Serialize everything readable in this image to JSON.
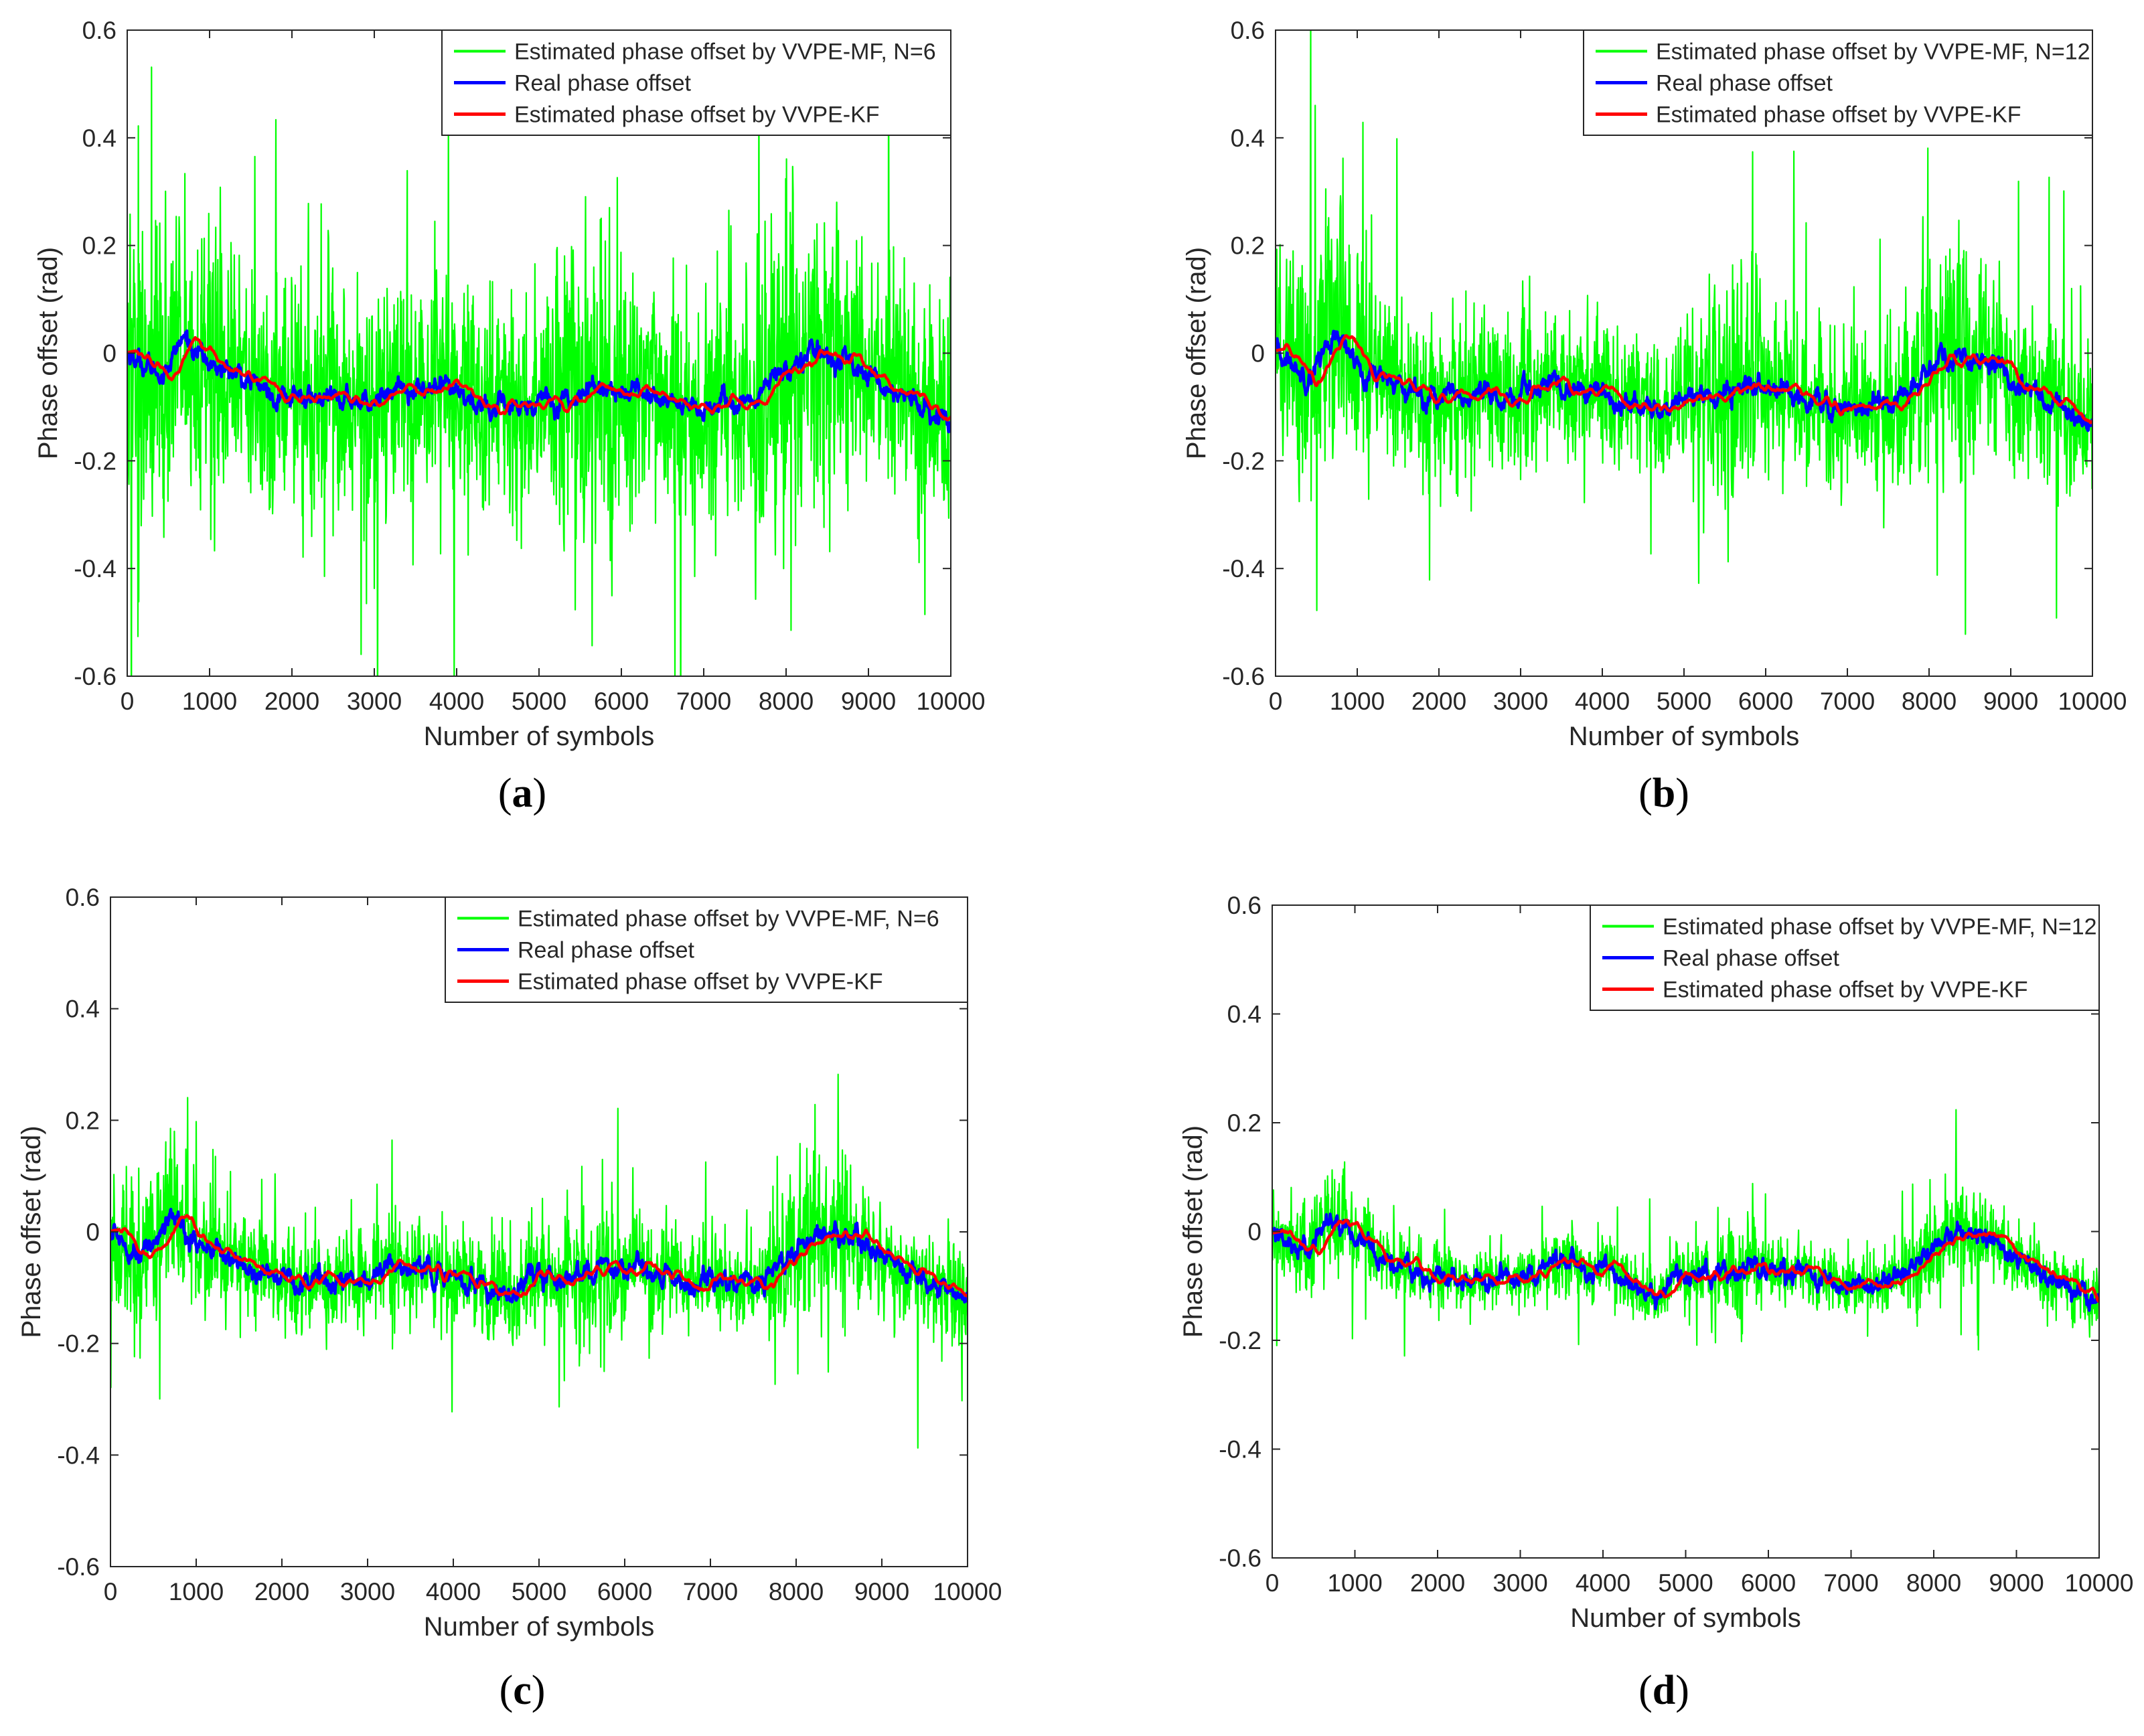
{
  "figure": {
    "panels": [
      "a",
      "b",
      "c",
      "d"
    ]
  },
  "chart_data": [
    {
      "panel": "a",
      "type": "line",
      "caption_letter": "a",
      "xlabel": "Number of symbols",
      "ylabel": "Phase offset (rad)",
      "xlim": [
        0,
        10000
      ],
      "ylim": [
        -0.6,
        0.6
      ],
      "xticks": [
        0,
        1000,
        2000,
        3000,
        4000,
        5000,
        6000,
        7000,
        8000,
        9000,
        10000
      ],
      "yticks": [
        -0.6,
        -0.4,
        -0.2,
        0,
        0.2,
        0.4,
        0.6
      ],
      "xtick_labels": [
        "0",
        "1000",
        "2000",
        "3000",
        "4000",
        "5000",
        "6000",
        "7000",
        "8000",
        "9000",
        "10000"
      ],
      "ytick_labels": [
        "-0.6",
        "-0.4",
        "-0.2",
        "0",
        "0.2",
        "0.4",
        "0.6"
      ],
      "legend_position": "top-right",
      "noise_amplitude": 0.3,
      "series": [
        {
          "name": "Estimated phase offset by VVPE-MF, N=6",
          "color": "#00ff00",
          "role": "noisy"
        },
        {
          "name": "Real phase offset",
          "color": "#0000ff",
          "role": "real"
        },
        {
          "name": "Estimated phase offset by VVPE-KF",
          "color": "#ff0000",
          "role": "kf"
        }
      ]
    },
    {
      "panel": "b",
      "type": "line",
      "caption_letter": "b",
      "xlabel": "Number of symbols",
      "ylabel": "Phase offset (rad)",
      "xlim": [
        0,
        10000
      ],
      "ylim": [
        -0.6,
        0.6
      ],
      "xticks": [
        0,
        1000,
        2000,
        3000,
        4000,
        5000,
        6000,
        7000,
        8000,
        9000,
        10000
      ],
      "yticks": [
        -0.6,
        -0.4,
        -0.2,
        0,
        0.2,
        0.4,
        0.6
      ],
      "xtick_labels": [
        "0",
        "1000",
        "2000",
        "3000",
        "4000",
        "5000",
        "6000",
        "7000",
        "8000",
        "9000",
        "10000"
      ],
      "ytick_labels": [
        "-0.6",
        "-0.4",
        "-0.2",
        "0",
        "0.2",
        "0.4",
        "0.6"
      ],
      "legend_position": "top-right",
      "noise_amplitude": 0.21,
      "series": [
        {
          "name": "Estimated phase offset by VVPE-MF, N=12",
          "color": "#00ff00",
          "role": "noisy"
        },
        {
          "name": "Real phase offset",
          "color": "#0000ff",
          "role": "real"
        },
        {
          "name": "Estimated phase offset by VVPE-KF",
          "color": "#ff0000",
          "role": "kf"
        }
      ]
    },
    {
      "panel": "c",
      "type": "line",
      "caption_letter": "c",
      "xlabel": "Number of symbols",
      "ylabel": "Phase offset (rad)",
      "xlim": [
        0,
        10000
      ],
      "ylim": [
        -0.6,
        0.6
      ],
      "xticks": [
        0,
        1000,
        2000,
        3000,
        4000,
        5000,
        6000,
        7000,
        8000,
        9000,
        10000
      ],
      "yticks": [
        -0.6,
        -0.4,
        -0.2,
        0,
        0.2,
        0.4,
        0.6
      ],
      "xtick_labels": [
        "0",
        "1000",
        "2000",
        "3000",
        "4000",
        "5000",
        "6000",
        "7000",
        "8000",
        "9000",
        "10000"
      ],
      "ytick_labels": [
        "-0.6",
        "-0.4",
        "-0.2",
        "0",
        "0.2",
        "0.4",
        "0.6"
      ],
      "legend_position": "top-right",
      "noise_amplitude": 0.13,
      "series": [
        {
          "name": "Estimated phase offset by VVPE-MF, N=6",
          "color": "#00ff00",
          "role": "noisy"
        },
        {
          "name": "Real phase offset",
          "color": "#0000ff",
          "role": "real"
        },
        {
          "name": "Estimated phase offset by VVPE-KF",
          "color": "#ff0000",
          "role": "kf"
        }
      ]
    },
    {
      "panel": "d",
      "type": "line",
      "caption_letter": "d",
      "xlabel": "Number of symbols",
      "ylabel": "Phase offset (rad)",
      "xlim": [
        0,
        10000
      ],
      "ylim": [
        -0.6,
        0.6
      ],
      "xticks": [
        0,
        1000,
        2000,
        3000,
        4000,
        5000,
        6000,
        7000,
        8000,
        9000,
        10000
      ],
      "yticks": [
        -0.6,
        -0.4,
        -0.2,
        0,
        0.2,
        0.4,
        0.6
      ],
      "xtick_labels": [
        "0",
        "1000",
        "2000",
        "3000",
        "4000",
        "5000",
        "6000",
        "7000",
        "8000",
        "9000",
        "10000"
      ],
      "ytick_labels": [
        "-0.6",
        "-0.4",
        "-0.2",
        "0",
        "0.2",
        "0.4",
        "0.6"
      ],
      "legend_position": "top-right",
      "noise_amplitude": 0.08,
      "series": [
        {
          "name": "Estimated phase offset by VVPE-MF, N=12",
          "color": "#00ff00",
          "role": "noisy"
        },
        {
          "name": "Real phase offset",
          "color": "#0000ff",
          "role": "real"
        },
        {
          "name": "Estimated phase offset by VVPE-KF",
          "color": "#ff0000",
          "role": "kf"
        }
      ]
    }
  ],
  "real_phase_anchors": {
    "x": [
      0,
      400,
      700,
      1000,
      1300,
      1700,
      2000,
      2500,
      3000,
      3300,
      3800,
      4200,
      4700,
      5000,
      5300,
      5700,
      6000,
      6500,
      6800,
      7100,
      7600,
      8000,
      8300,
      8600,
      8800,
      9100,
      9500,
      10000
    ],
    "y": [
      0,
      -0.04,
      0.03,
      -0.02,
      -0.04,
      -0.07,
      -0.08,
      -0.09,
      -0.08,
      -0.06,
      -0.07,
      -0.09,
      -0.11,
      -0.08,
      -0.09,
      -0.06,
      -0.07,
      -0.08,
      -0.1,
      -0.1,
      -0.09,
      -0.03,
      0.0,
      -0.01,
      -0.02,
      -0.05,
      -0.09,
      -0.13
    ]
  }
}
